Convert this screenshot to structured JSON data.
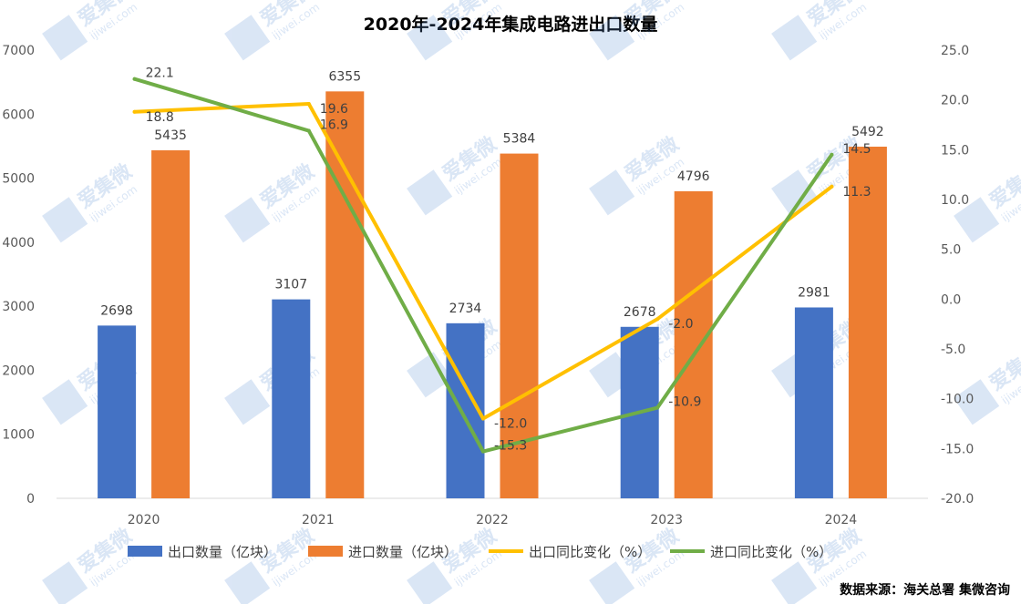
{
  "chart_data": {
    "type": "bar",
    "title": "2020年-2024年集成电路进出口数量",
    "categories": [
      "2020",
      "2021",
      "2022",
      "2023",
      "2024"
    ],
    "bar_series": [
      {
        "name": "出口数量（亿块）",
        "values": [
          2698,
          3107,
          2734,
          2678,
          2981
        ],
        "color": "#4472C4"
      },
      {
        "name": "进口数量（亿块）",
        "values": [
          5435,
          6355,
          5384,
          4796,
          5492
        ],
        "color": "#ED7D31"
      }
    ],
    "line_series": [
      {
        "name": "出口同比变化（%）",
        "values": [
          18.8,
          19.6,
          -12.0,
          -2.0,
          11.3
        ],
        "labels": [
          "18.8",
          "19.6",
          "-12.0",
          "-2.0",
          "11.3"
        ],
        "color": "#FFC000"
      },
      {
        "name": "进口同比变化（%）",
        "values": [
          22.1,
          16.9,
          -15.3,
          -10.9,
          14.5
        ],
        "labels": [
          "22.1",
          "16.9",
          "-15.3",
          "-10.9",
          "14.5"
        ],
        "color": "#70AD47"
      }
    ],
    "y_left": {
      "min": 0,
      "max": 7000,
      "ticks": [
        "0",
        "1000",
        "2000",
        "3000",
        "4000",
        "5000",
        "6000",
        "7000"
      ]
    },
    "y_right": {
      "min": -20,
      "max": 25,
      "ticks": [
        "-20.0",
        "-15.0",
        "-10.0",
        "-5.0",
        "0.0",
        "5.0",
        "10.0",
        "15.0",
        "20.0",
        "25.0"
      ]
    },
    "legend_position": "bottom",
    "grid": false
  },
  "source": "数据来源：海关总署    集微咨询",
  "watermark": {
    "brand": "爱集微",
    "site": "ijiwei.com"
  }
}
